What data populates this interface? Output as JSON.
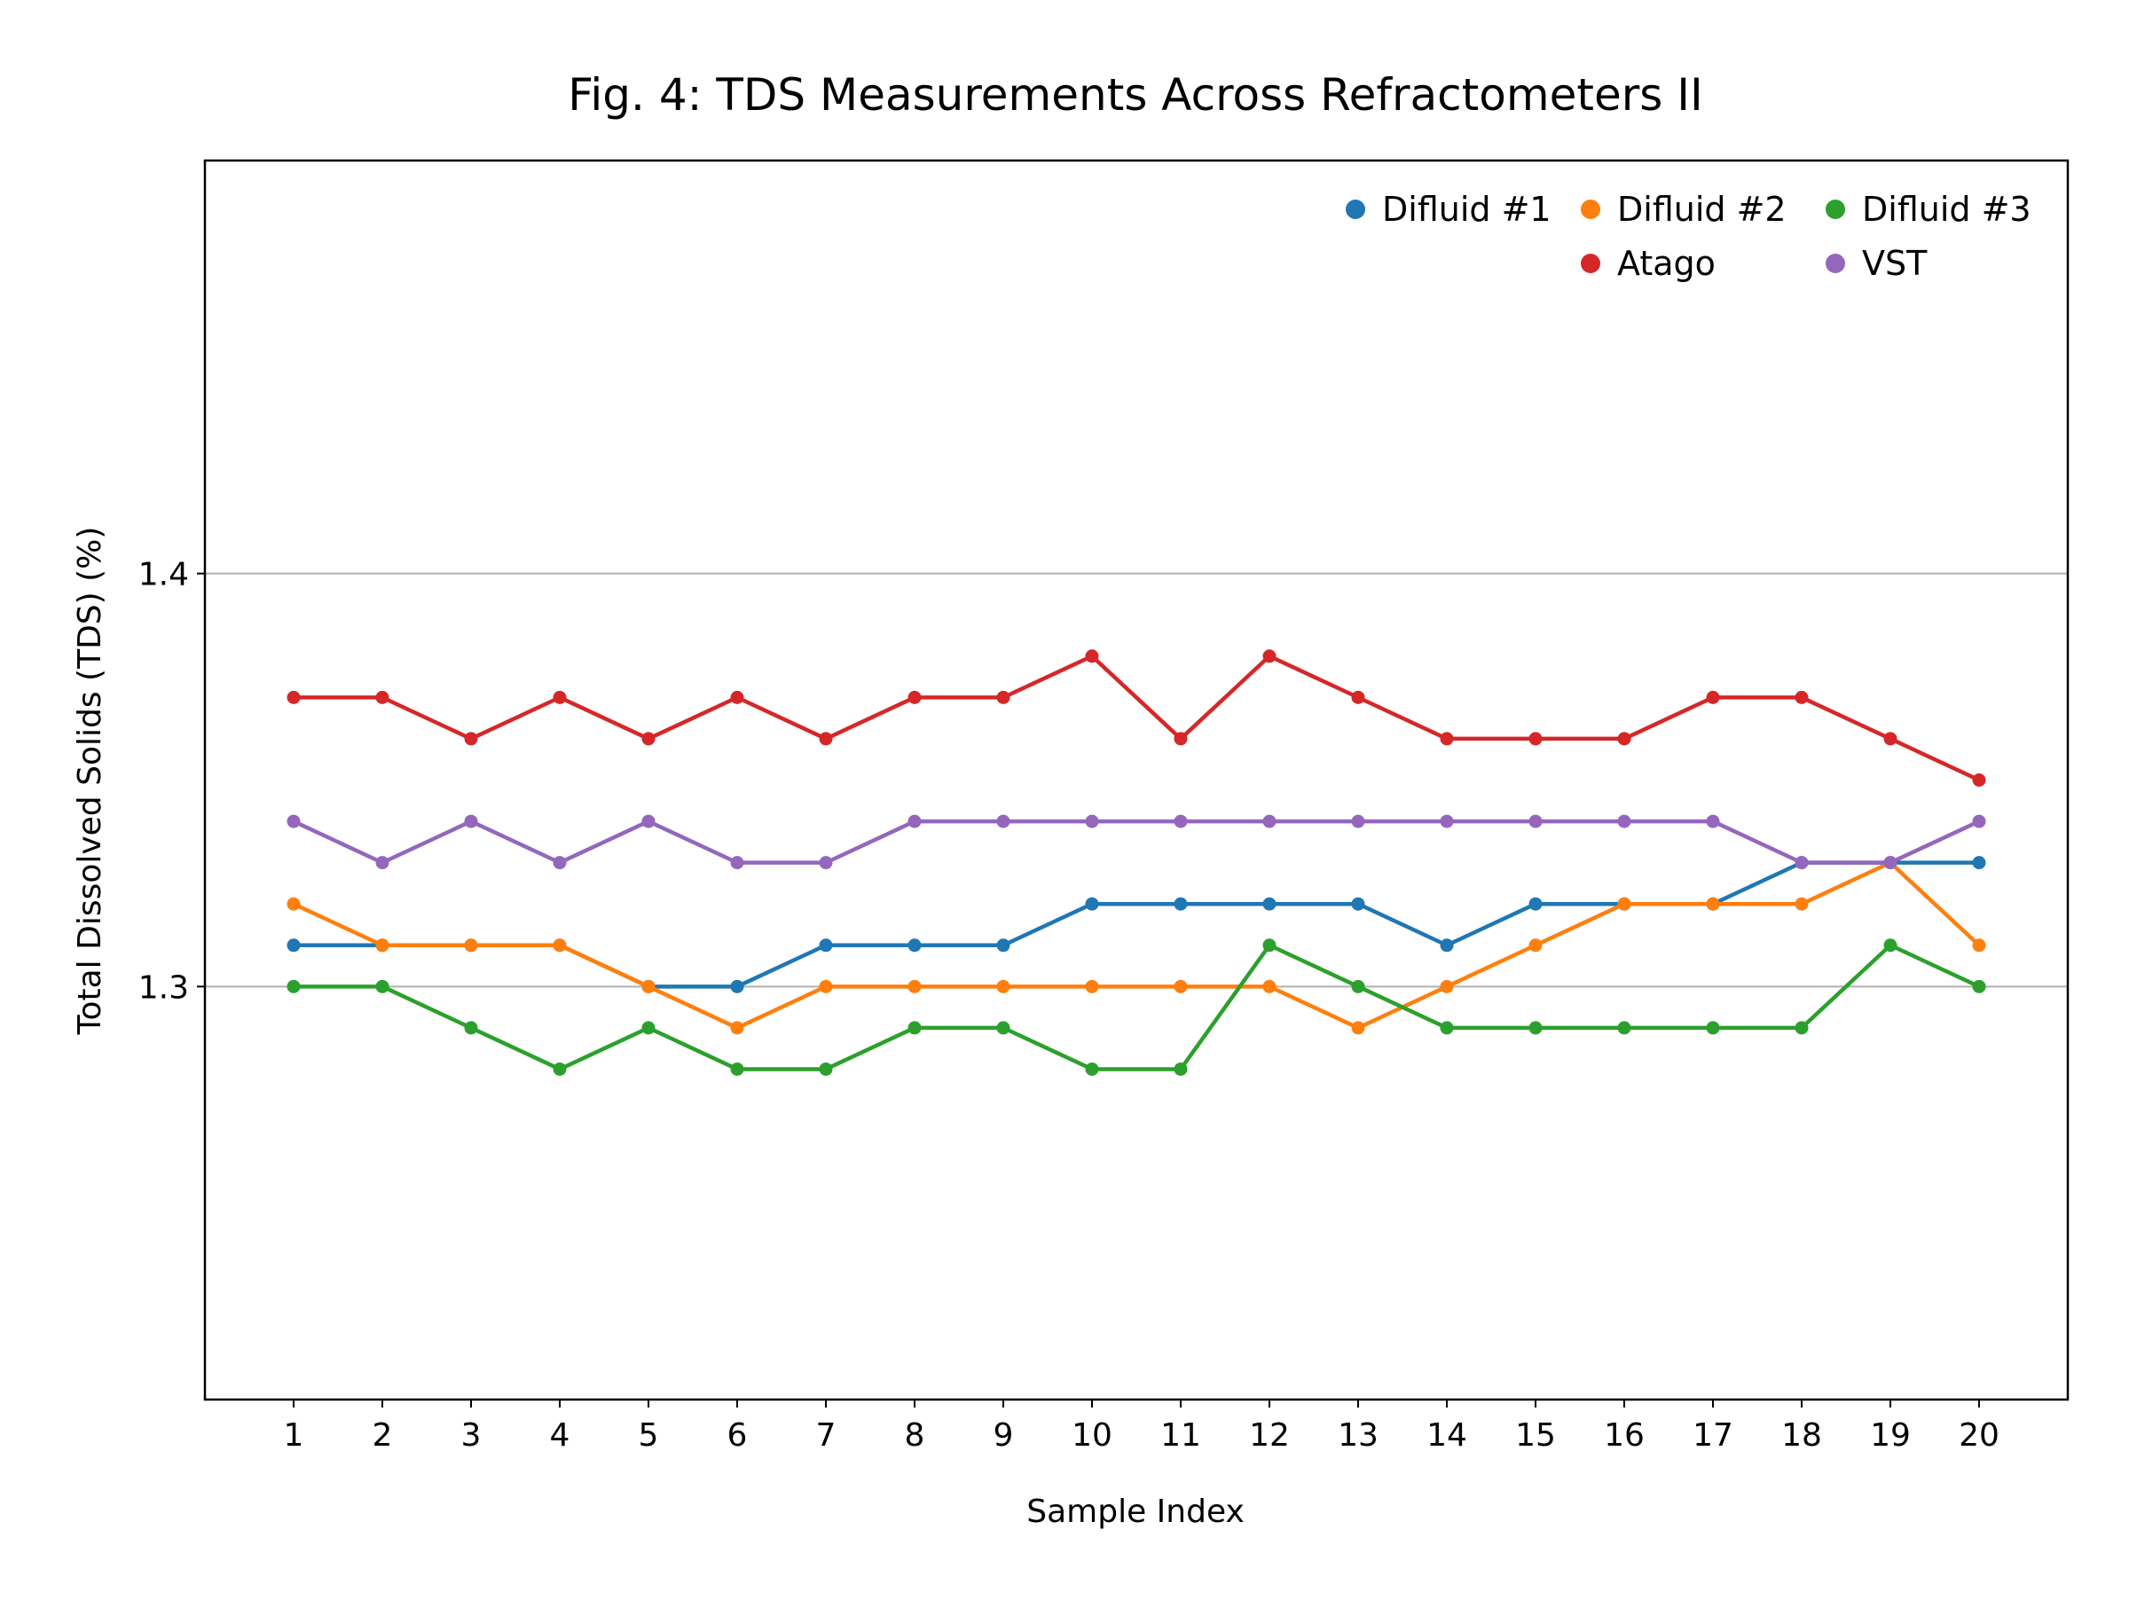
{
  "chart_data": {
    "type": "line",
    "title": "Fig. 4: TDS Measurements Across Refractometers II",
    "xlabel": "Sample Index",
    "ylabel": "Total Dissolved Solids (TDS) (%)",
    "x": [
      1,
      2,
      3,
      4,
      5,
      6,
      7,
      8,
      9,
      10,
      11,
      12,
      13,
      14,
      15,
      16,
      17,
      18,
      19,
      20
    ],
    "x_tick_labels": [
      "1",
      "2",
      "3",
      "4",
      "5",
      "6",
      "7",
      "8",
      "9",
      "10",
      "11",
      "12",
      "13",
      "14",
      "15",
      "16",
      "17",
      "18",
      "19",
      "20"
    ],
    "xlim": [
      0,
      21
    ],
    "ylim": [
      1.2,
      1.5
    ],
    "y_ticks": [
      1.3,
      1.4
    ],
    "y_tick_labels": [
      "1.3",
      "1.4"
    ],
    "grid": "horizontal",
    "legend_position": "top-right",
    "series": [
      {
        "name": "Difluid #1",
        "color": "#1f77b4",
        "values": [
          1.31,
          1.31,
          1.31,
          1.31,
          1.3,
          1.3,
          1.31,
          1.31,
          1.31,
          1.32,
          1.32,
          1.32,
          1.32,
          1.31,
          1.32,
          1.32,
          1.32,
          1.33,
          1.33,
          1.33
        ]
      },
      {
        "name": "Difluid #2",
        "color": "#ff7f0e",
        "values": [
          1.32,
          1.31,
          1.31,
          1.31,
          1.3,
          1.29,
          1.3,
          1.3,
          1.3,
          1.3,
          1.3,
          1.3,
          1.29,
          1.3,
          1.31,
          1.32,
          1.32,
          1.32,
          1.33,
          1.31
        ]
      },
      {
        "name": "Difluid #3",
        "color": "#2ca02c",
        "values": [
          1.3,
          1.3,
          1.29,
          1.28,
          1.29,
          1.28,
          1.28,
          1.29,
          1.29,
          1.28,
          1.28,
          1.31,
          1.3,
          1.29,
          1.29,
          1.29,
          1.29,
          1.29,
          1.31,
          1.3
        ]
      },
      {
        "name": "Atago",
        "color": "#d62728",
        "values": [
          1.37,
          1.37,
          1.36,
          1.37,
          1.36,
          1.37,
          1.36,
          1.37,
          1.37,
          1.38,
          1.36,
          1.38,
          1.37,
          1.36,
          1.36,
          1.36,
          1.37,
          1.37,
          1.36,
          1.35
        ]
      },
      {
        "name": "VST",
        "color": "#9467bd",
        "values": [
          1.34,
          1.33,
          1.34,
          1.33,
          1.34,
          1.33,
          1.33,
          1.34,
          1.34,
          1.34,
          1.34,
          1.34,
          1.34,
          1.34,
          1.34,
          1.34,
          1.34,
          1.33,
          1.33,
          1.34
        ]
      }
    ]
  }
}
